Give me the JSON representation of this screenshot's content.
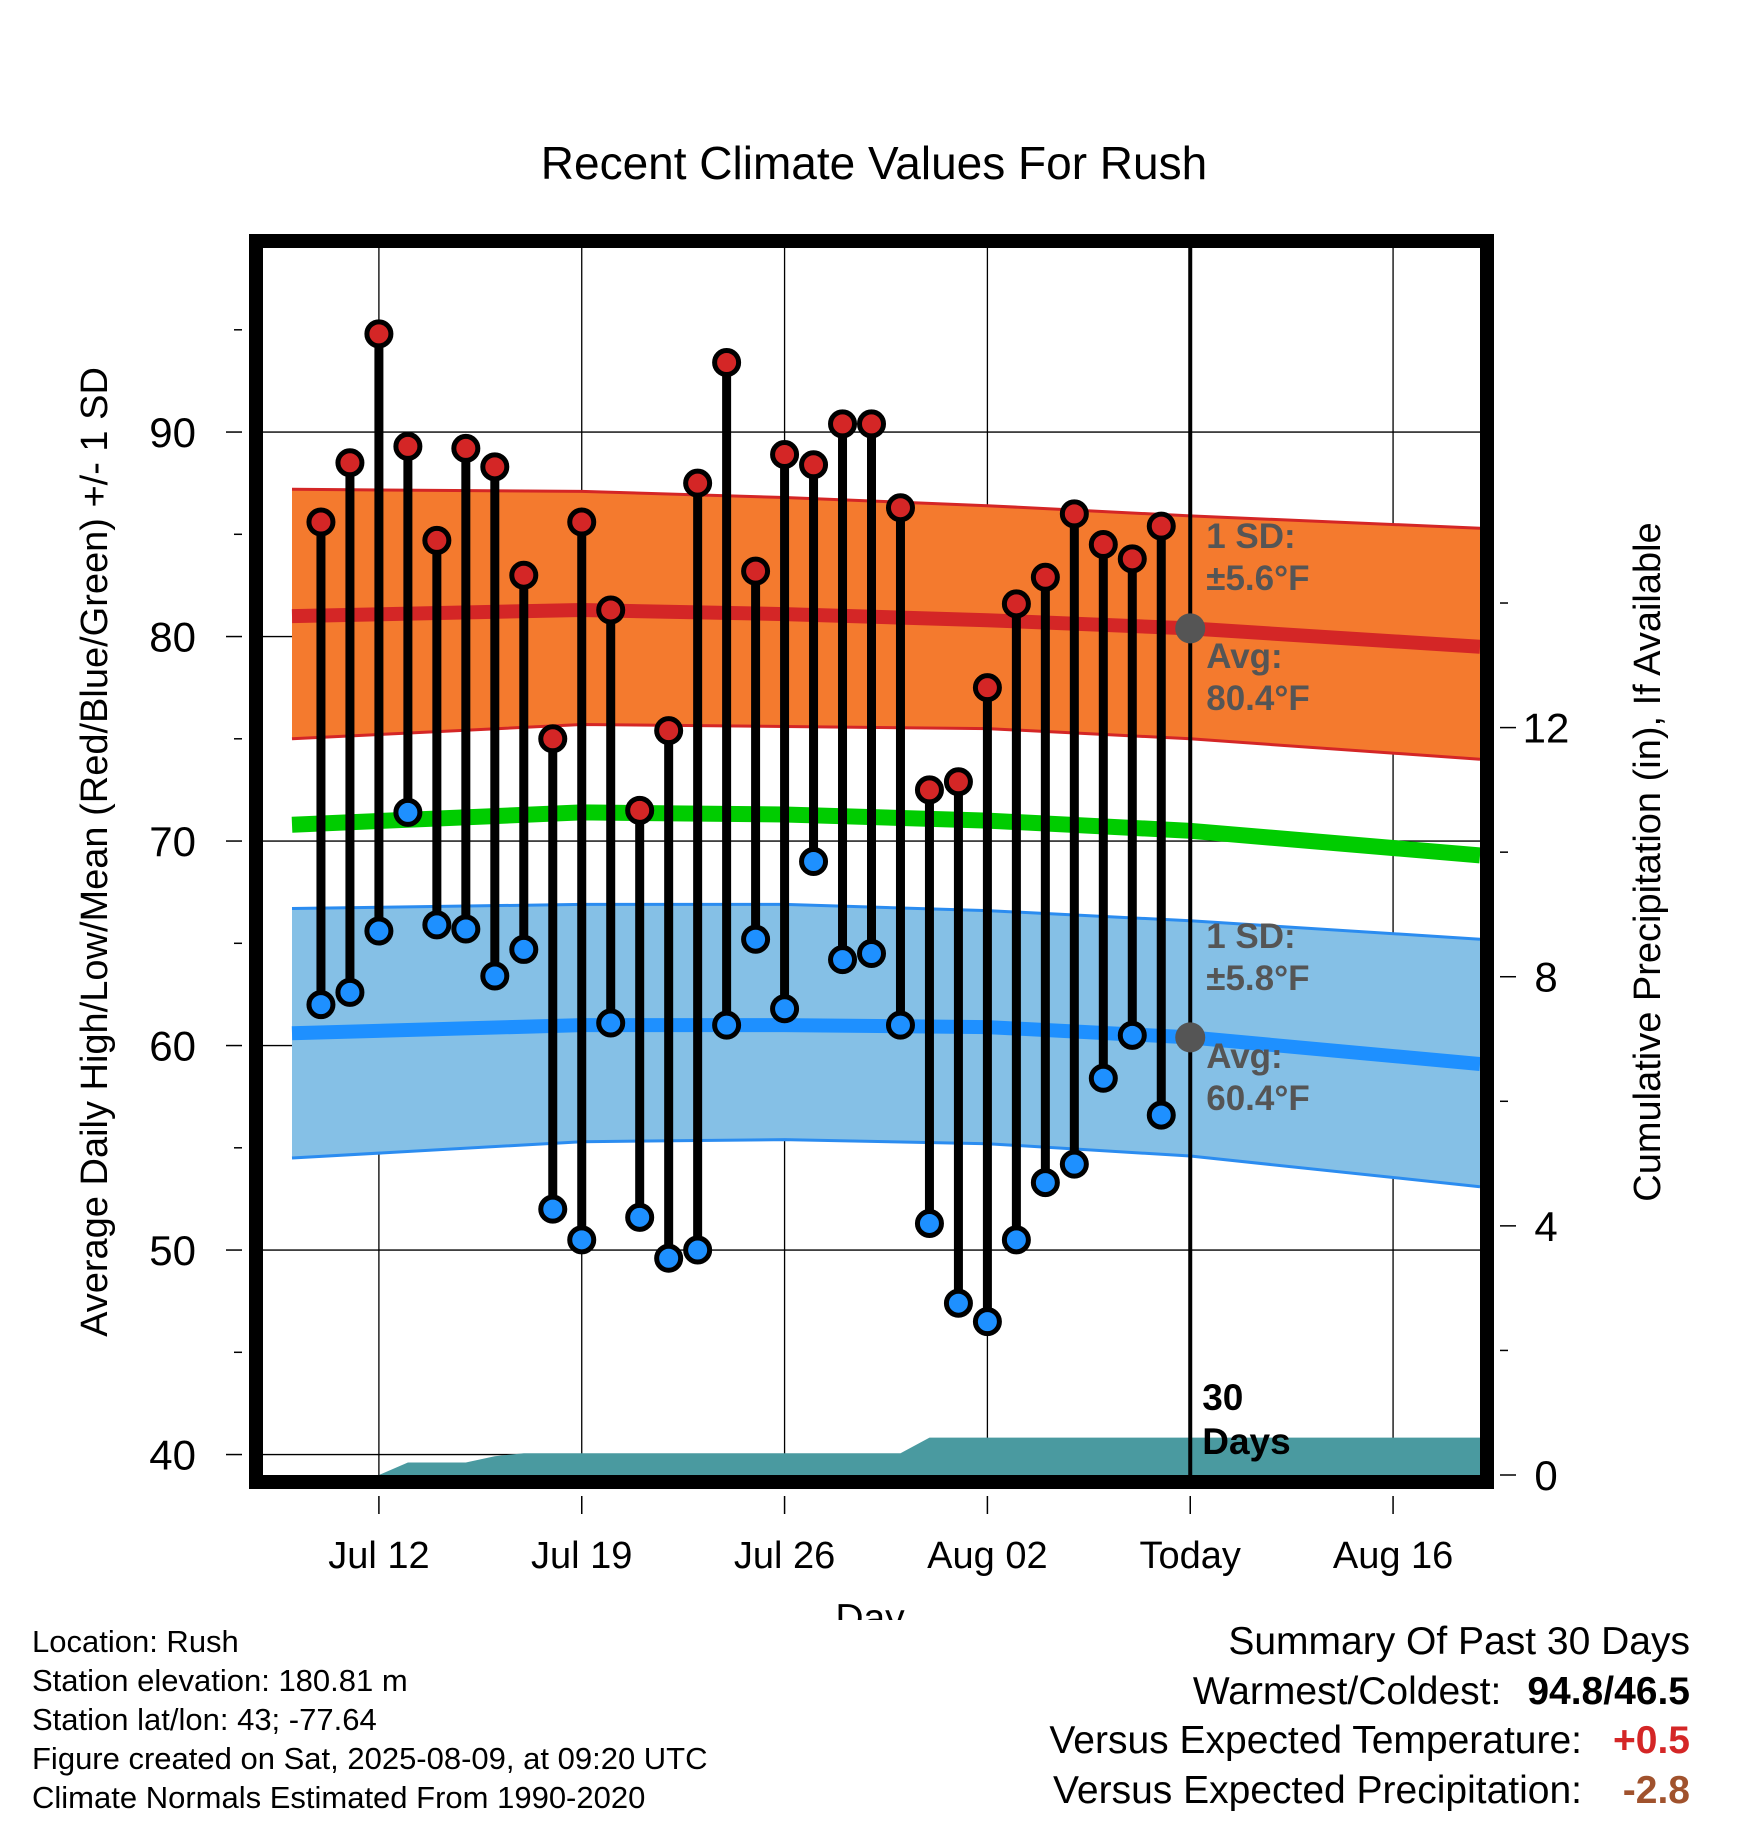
{
  "colors": {
    "high_band": "#f47a2e",
    "high_band_edge": "#d42626",
    "high_mean": "#d42626",
    "low_band": "#85c0e6",
    "low_band_edge": "#2b8cf0",
    "low_mean": "#1e90ff",
    "mean_line": "#00cc00",
    "precip": "#4a9aa0",
    "high_dot": "#d42626",
    "low_dot": "#1e90ff",
    "annotation": "#555555"
  },
  "chart_data": {
    "type": "range_scatter",
    "title": "Recent Climate Values For Rush",
    "xlabel": "Day",
    "ylabel": "Average Daily High/Low/Mean (Red/Blue/Green) +/- 1 SD",
    "y2label": "Cumulative Precipitation (in), If Available",
    "xlim": [
      "Jul 08",
      "Aug 19"
    ],
    "ylim": [
      39,
      99
    ],
    "y2lim": [
      0,
      19.7
    ],
    "x_ticks": [
      {
        "date": "Jul 12",
        "label": "Jul 12"
      },
      {
        "date": "Jul 19",
        "label": "Jul 19"
      },
      {
        "date": "Jul 26",
        "label": "Jul 26"
      },
      {
        "date": "Aug 02",
        "label": "Aug 02"
      },
      {
        "date": "Aug 09",
        "label": "Today"
      },
      {
        "date": "Aug 16",
        "label": "Aug 16"
      }
    ],
    "y_ticks": [
      40,
      50,
      60,
      70,
      80,
      90
    ],
    "y2_ticks": [
      0,
      4,
      8,
      12
    ],
    "today": "Aug 09",
    "period_label": "30\nDays",
    "dates": [
      "Jul 10",
      "Jul 11",
      "Jul 12",
      "Jul 13",
      "Jul 14",
      "Jul 15",
      "Jul 16",
      "Jul 17",
      "Jul 18",
      "Jul 19",
      "Jul 20",
      "Jul 21",
      "Jul 22",
      "Jul 23",
      "Jul 24",
      "Jul 25",
      "Jul 26",
      "Jul 27",
      "Jul 28",
      "Jul 29",
      "Jul 30",
      "Jul 31",
      "Aug 01",
      "Aug 02",
      "Aug 03",
      "Aug 04",
      "Aug 05",
      "Aug 06",
      "Aug 07",
      "Aug 08"
    ],
    "highs": [
      85.6,
      88.5,
      94.8,
      89.3,
      84.7,
      89.2,
      88.3,
      83.0,
      75.0,
      85.6,
      81.3,
      71.5,
      75.4,
      87.5,
      93.4,
      83.2,
      88.9,
      88.4,
      90.4,
      90.4,
      86.3,
      72.5,
      72.9,
      77.5,
      81.6,
      82.9,
      86.0,
      84.5,
      83.8,
      85.4
    ],
    "lows": [
      62.0,
      62.6,
      65.6,
      71.4,
      65.9,
      65.7,
      63.4,
      64.7,
      52.0,
      50.5,
      61.1,
      51.6,
      49.6,
      50.0,
      61.0,
      65.2,
      61.8,
      69.0,
      64.2,
      64.5,
      61.0,
      51.3,
      47.4,
      46.5,
      50.5,
      53.3,
      54.2,
      58.4,
      60.5,
      56.6
    ],
    "normals": {
      "dates": [
        "Jul 09",
        "Jul 19",
        "Jul 26",
        "Aug 02",
        "Aug 09",
        "Aug 19"
      ],
      "high_mean": [
        81.0,
        81.3,
        81.1,
        80.8,
        80.4,
        79.5
      ],
      "high_upper": [
        87.2,
        87.1,
        86.8,
        86.4,
        85.9,
        85.3
      ],
      "high_lower": [
        75.0,
        75.7,
        75.6,
        75.5,
        75.0,
        74.0
      ],
      "low_mean": [
        60.6,
        61.0,
        61.0,
        60.9,
        60.4,
        59.1
      ],
      "low_upper": [
        66.7,
        66.9,
        66.9,
        66.6,
        66.1,
        65.2
      ],
      "low_lower": [
        54.5,
        55.3,
        55.4,
        55.2,
        54.6,
        53.1
      ],
      "mean": [
        70.8,
        71.4,
        71.3,
        71.0,
        70.5,
        69.3
      ]
    },
    "precip": {
      "dates": [
        "Jul 08",
        "Jul 11",
        "Jul 12",
        "Jul 13",
        "Jul 15",
        "Jul 16",
        "Jul 17",
        "Jul 26",
        "Jul 30",
        "Jul 31",
        "Aug 19"
      ],
      "values": [
        0,
        0,
        0,
        0.2,
        0.2,
        0.3,
        0.35,
        0.35,
        0.35,
        0.6,
        0.6
      ]
    },
    "annotations": {
      "high_sd": {
        "label": "1 SD:",
        "value": "±5.6°F"
      },
      "high_avg": {
        "label": "Avg:",
        "value": "80.4°F",
        "y": 80.4
      },
      "low_sd": {
        "label": "1 SD:",
        "value": "±5.8°F"
      },
      "low_avg": {
        "label": "Avg:",
        "value": "60.4°F",
        "y": 60.4
      }
    }
  },
  "footer_left": [
    "Location: Rush",
    "Station elevation: 180.81 m",
    "Station lat/lon: 43; -77.64",
    "Figure created on Sat, 2025-08-09, at 09:20 UTC",
    "Climate Normals Estimated From 1990-2020"
  ],
  "summary": {
    "title": "Summary Of Past 30 Days",
    "range_label": "Warmest/Coldest:",
    "range_value": "94.8/46.5",
    "temp_label": "Versus Expected Temperature:",
    "temp_value": "+0.5",
    "precip_label": "Versus Expected Precipitation:",
    "precip_value": "-2.8"
  }
}
